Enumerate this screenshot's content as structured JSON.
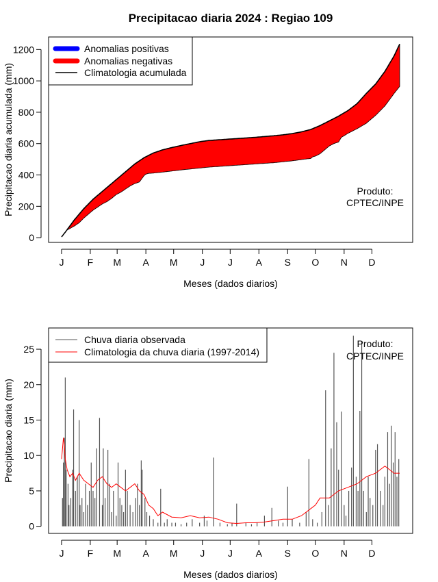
{
  "chart_data": [
    {
      "type": "area",
      "title": "Precipitacao diaria 2024 : Regiao 109",
      "xlabel": "Meses (dados diarios)",
      "ylabel": "Precipitacao diaria acumulada (mm)",
      "x_tick_labels": [
        "J",
        "F",
        "M",
        "A",
        "M",
        "J",
        "J",
        "A",
        "S",
        "O",
        "N",
        "D"
      ],
      "x_tick_days": [
        1,
        32,
        61,
        92,
        122,
        153,
        183,
        214,
        245,
        275,
        306,
        336
      ],
      "y_ticks": [
        0,
        200,
        400,
        600,
        800,
        1000,
        1200
      ],
      "xlim": [
        -13,
        380
      ],
      "ylim": [
        -30,
        1280
      ],
      "grid": false,
      "legend_position": "top-left",
      "legend": [
        {
          "label": "Anomalias positivas",
          "color": "#0000ff"
        },
        {
          "label": "Anomalias negativas",
          "color": "#ff0000"
        },
        {
          "label": "Climatologia acumulada",
          "color": "#000000"
        }
      ],
      "annotation": [
        "Produto:",
        "CPTEC/INPE"
      ],
      "series": [
        {
          "name": "Climatologia acumulada",
          "x": [
            1,
            5,
            10,
            15,
            20,
            25,
            30,
            35,
            40,
            45,
            50,
            55,
            60,
            65,
            70,
            75,
            80,
            85,
            90,
            95,
            100,
            110,
            120,
            130,
            140,
            150,
            160,
            170,
            180,
            190,
            200,
            210,
            220,
            230,
            240,
            250,
            260,
            270,
            280,
            290,
            300,
            310,
            320,
            330,
            340,
            350,
            360,
            366
          ],
          "y": [
            5,
            35,
            75,
            115,
            150,
            185,
            215,
            245,
            270,
            295,
            320,
            345,
            370,
            395,
            420,
            445,
            470,
            490,
            510,
            525,
            540,
            560,
            575,
            588,
            600,
            612,
            620,
            624,
            628,
            632,
            636,
            640,
            645,
            650,
            656,
            664,
            675,
            690,
            715,
            745,
            775,
            810,
            855,
            920,
            980,
            1060,
            1160,
            1235
          ]
        },
        {
          "name": "Observada acumulada",
          "x": [
            1,
            3,
            5,
            7,
            10,
            12,
            15,
            20,
            25,
            30,
            35,
            40,
            45,
            50,
            55,
            60,
            65,
            70,
            75,
            80,
            85,
            90,
            92,
            95,
            100,
            105,
            110,
            120,
            130,
            140,
            150,
            160,
            170,
            180,
            190,
            200,
            210,
            220,
            230,
            240,
            250,
            260,
            265,
            270,
            272,
            275,
            280,
            285,
            290,
            295,
            300,
            303,
            306,
            310,
            315,
            320,
            330,
            340,
            350,
            355,
            360,
            366
          ],
          "y": [
            5,
            20,
            35,
            50,
            58,
            65,
            75,
            95,
            125,
            150,
            175,
            195,
            215,
            230,
            250,
            275,
            290,
            310,
            330,
            345,
            355,
            395,
            405,
            410,
            412,
            415,
            418,
            425,
            432,
            438,
            444,
            450,
            454,
            458,
            462,
            466,
            470,
            474,
            478,
            484,
            490,
            498,
            502,
            505,
            515,
            520,
            535,
            560,
            585,
            600,
            610,
            640,
            650,
            665,
            680,
            695,
            730,
            780,
            840,
            880,
            920,
            965
          ]
        }
      ]
    },
    {
      "type": "line",
      "xlabel": "Meses (dados diarios)",
      "ylabel": "Precipitacao diaria (mm)",
      "x_tick_labels": [
        "J",
        "F",
        "M",
        "A",
        "M",
        "J",
        "J",
        "A",
        "S",
        "O",
        "N",
        "D"
      ],
      "x_tick_days": [
        1,
        32,
        61,
        92,
        122,
        153,
        183,
        214,
        245,
        275,
        306,
        336
      ],
      "y_ticks": [
        0,
        5,
        10,
        15,
        20,
        25
      ],
      "xlim": [
        -13,
        380
      ],
      "ylim": [
        -1,
        28
      ],
      "grid": false,
      "legend_position": "top-left",
      "legend": [
        {
          "label": "Chuva diaria observada",
          "color": "#555555"
        },
        {
          "label": "Climatologia da chuva diaria (1997-2014)",
          "color": "#ff0000"
        }
      ],
      "annotation": [
        "Produto:",
        "CPTEC/INPE"
      ],
      "series": [
        {
          "name": "Chuva diaria observada",
          "kind": "bars",
          "x": [
            2,
            3,
            4,
            5,
            6,
            8,
            9,
            11,
            13,
            14,
            16,
            18,
            20,
            21,
            23,
            25,
            27,
            29,
            31,
            33,
            35,
            37,
            39,
            42,
            45,
            46,
            48,
            51,
            53,
            55,
            57,
            60,
            62,
            64,
            66,
            68,
            70,
            72,
            75,
            78,
            81,
            83,
            85,
            87,
            88,
            91,
            93,
            96,
            100,
            105,
            108,
            112,
            115,
            120,
            124,
            130,
            136,
            142,
            150,
            155,
            158,
            165,
            172,
            180,
            185,
            190,
            200,
            206,
            212,
            220,
            228,
            235,
            240,
            245,
            250,
            258,
            265,
            268,
            272,
            277,
            282,
            286,
            289,
            292,
            295,
            298,
            300,
            303,
            306,
            308,
            311,
            314,
            316,
            319,
            321,
            323,
            325,
            327,
            330,
            332,
            334,
            337,
            340,
            342,
            345,
            348,
            350,
            353,
            355,
            357,
            359,
            361,
            363,
            365
          ],
          "values": [
            4,
            9,
            12.5,
            21,
            8,
            6,
            3,
            4,
            8,
            16.5,
            5,
            7,
            15,
            3,
            4,
            2,
            6,
            3,
            5,
            9,
            5,
            4,
            11,
            15.3,
            3,
            11,
            4,
            10.8,
            6,
            2,
            5,
            1.5,
            9,
            4,
            3,
            2,
            8,
            5,
            3,
            2,
            4,
            6,
            3,
            9.3,
            8,
            4,
            2,
            1.5,
            1,
            0.5,
            5.3,
            0.5,
            1,
            0.5,
            0.5,
            0.3,
            0.5,
            1,
            0.5,
            1.5,
            0.8,
            9.7,
            0.5,
            0.3,
            0.5,
            3.2,
            0.5,
            0.3,
            0.5,
            1.5,
            2.6,
            0.8,
            0.5,
            5.6,
            1,
            0.5,
            2,
            9.5,
            1,
            0.5,
            2,
            19.2,
            3,
            11,
            24.5,
            14.7,
            8,
            16.2,
            3,
            1.5,
            5,
            8.3,
            26.9,
            7,
            5,
            16.3,
            26.1,
            5,
            2,
            7,
            4,
            3,
            10.8,
            11.6,
            5,
            3,
            7,
            13.3,
            6,
            14.2,
            9,
            13.3,
            7,
            9.5
          ]
        },
        {
          "name": "Climatologia da chuva diaria (1997-2014)",
          "kind": "line",
          "x": [
            1,
            3,
            4,
            5,
            7,
            10,
            13,
            16,
            20,
            25,
            30,
            35,
            40,
            45,
            50,
            55,
            60,
            65,
            70,
            75,
            80,
            85,
            90,
            95,
            100,
            105,
            110,
            120,
            130,
            140,
            150,
            160,
            170,
            180,
            190,
            200,
            210,
            220,
            230,
            240,
            250,
            260,
            270,
            275,
            280,
            290,
            300,
            310,
            320,
            330,
            340,
            345,
            350,
            355,
            360,
            366
          ],
          "y": [
            9.5,
            12.5,
            11.5,
            9.5,
            8,
            7,
            7.5,
            6.5,
            7.5,
            6.5,
            6,
            5.5,
            6.5,
            7,
            6,
            5.5,
            6,
            5.5,
            5,
            5.5,
            6,
            5,
            4.5,
            3,
            2.5,
            1.5,
            2,
            1.3,
            1.2,
            1.5,
            1.2,
            1.3,
            1,
            0.5,
            0.4,
            0.5,
            0.5,
            0.6,
            0.8,
            1,
            1,
            1.5,
            2.5,
            3,
            4,
            4,
            5,
            5.5,
            6,
            7,
            7.5,
            8,
            8.5,
            8,
            7.5,
            7.5
          ]
        }
      ]
    }
  ]
}
